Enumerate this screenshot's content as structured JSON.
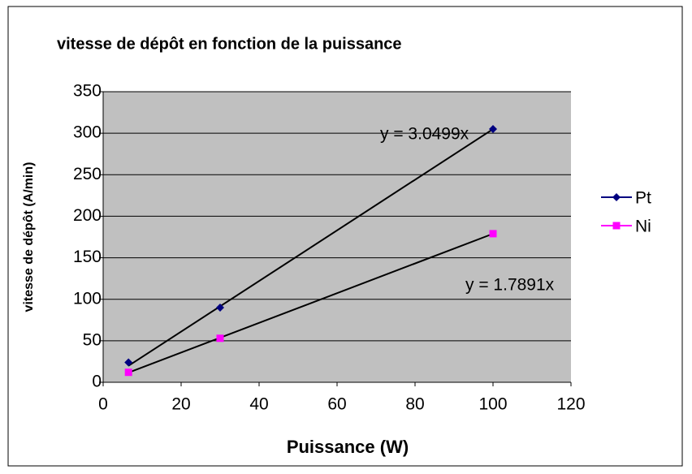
{
  "chart_data": {
    "type": "scatter",
    "title": "vitesse de dépôt en fonction de la puissance",
    "xlabel": "Puissance (W)",
    "ylabel": "vitesse de dépôt (A/min)",
    "xlim": [
      0,
      120
    ],
    "xticks": [
      0,
      20,
      40,
      60,
      80,
      100,
      120
    ],
    "ylim": [
      0,
      350
    ],
    "yticks": [
      0,
      50,
      100,
      150,
      200,
      250,
      300,
      350
    ],
    "grid": true,
    "legend": "right",
    "series": [
      {
        "name": "Pt",
        "color": "#000080",
        "marker": "diamond",
        "x": [
          6.5,
          30,
          100
        ],
        "values": [
          24,
          90,
          305
        ],
        "trendline_slope": 3.0499,
        "trendline_label": "y = 3.0499x"
      },
      {
        "name": "Ni",
        "color": "#ff00ff",
        "marker": "square",
        "x": [
          6.5,
          30,
          100
        ],
        "values": [
          12,
          53,
          179
        ],
        "trendline_slope": 1.7891,
        "trendline_label": "y = 1.7891x"
      }
    ]
  }
}
